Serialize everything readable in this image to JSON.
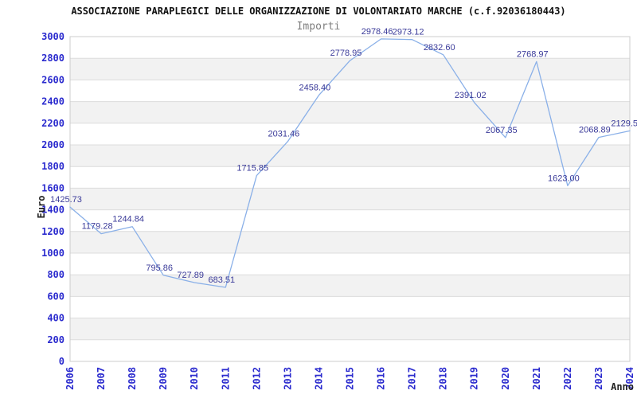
{
  "page": {
    "title": "ASSOCIAZIONE PARAPLEGICI DELLE ORGANIZZAZIONE DI VOLONTARIATO MARCHE (c.f.92036180443)",
    "subtitle": "Importi"
  },
  "chart_data": {
    "type": "line",
    "title": "ASSOCIAZIONE PARAPLEGICI DELLE ORGANIZZAZIONE DI VOLONTARIATO MARCHE (c.f.92036180443)",
    "subtitle": "Importi",
    "xlabel": "Anno",
    "ylabel": "Euro",
    "x": [
      2006,
      2007,
      2008,
      2009,
      2010,
      2011,
      2012,
      2013,
      2014,
      2015,
      2016,
      2017,
      2018,
      2019,
      2020,
      2021,
      2022,
      2023,
      2024
    ],
    "values": [
      1425.73,
      1179.28,
      1244.84,
      795.86,
      727.89,
      683.51,
      1715.85,
      2031.46,
      2458.4,
      2778.95,
      2978.46,
      2973.12,
      2832.6,
      2391.02,
      2067.35,
      2768.97,
      1623.0,
      2068.89,
      2129.5
    ],
    "point_labels": [
      "1425.73",
      "1179.28",
      "1244.84",
      "795.86",
      "727.89",
      "683.51",
      "1715.85",
      "2031.46",
      "2458.40",
      "2778.95",
      "2978.46",
      "2973.12",
      "2832.60",
      "2391.02",
      "2067.35",
      "2768.97",
      "1623.00",
      "2068.89",
      "2129.5"
    ],
    "ylim": [
      0,
      3000
    ],
    "ytick_step": 200,
    "grid": "horizontal",
    "banded_background": true,
    "legend": "none",
    "colors": {
      "line": "#8ab0e8",
      "tick_label": "#2a2ace",
      "point_label": "#3a3a99",
      "grid": "#dcdcdc",
      "band": "#f2f2f2",
      "border": "#cccccc",
      "title": "#111111",
      "subtitle": "#7f7f7f",
      "axis_title": "#222222"
    }
  }
}
